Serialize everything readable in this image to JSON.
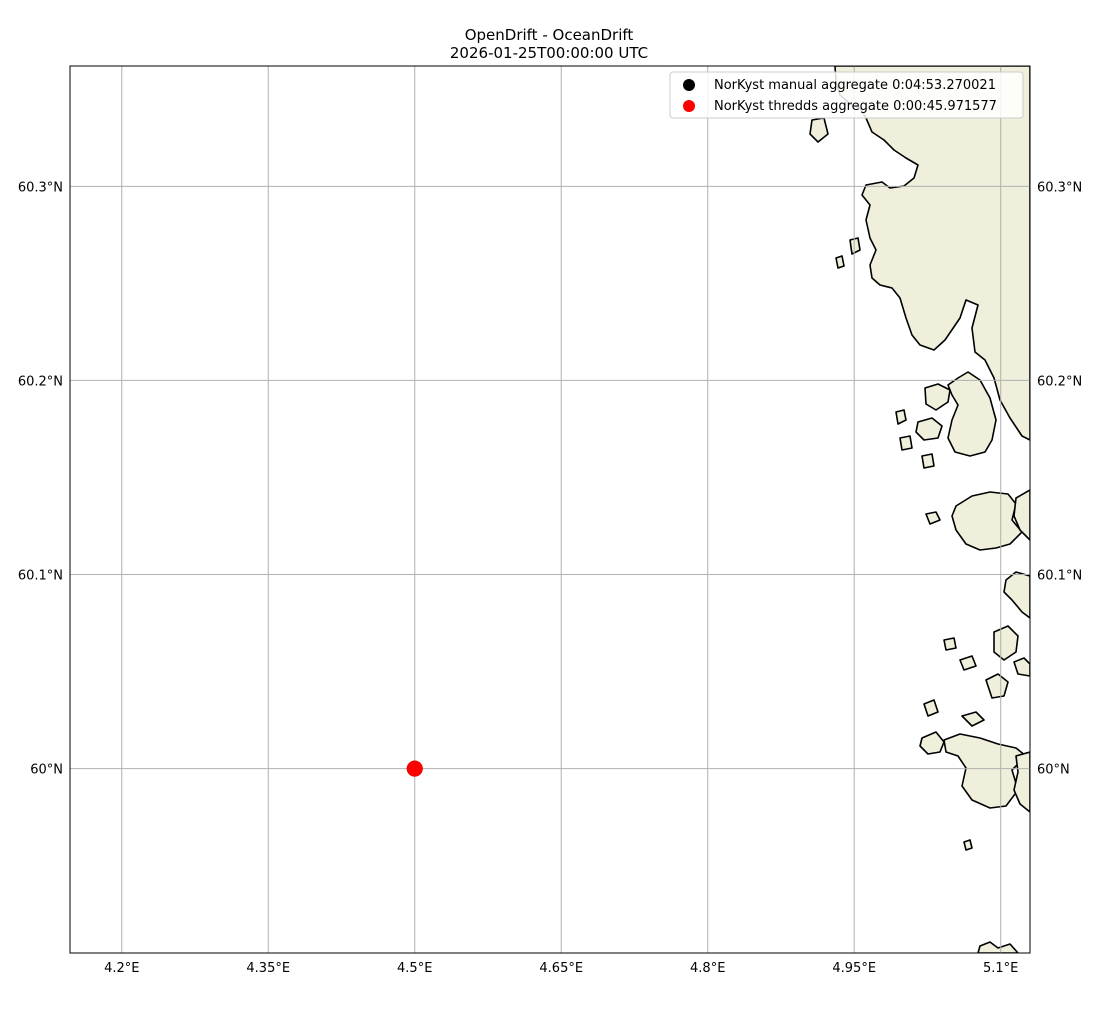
{
  "title": {
    "line1": "OpenDrift - OceanDrift",
    "line2": "2026-01-25T00:00:00 UTC"
  },
  "map": {
    "lon_range": [
      4.147,
      5.13
    ],
    "lat_range": [
      59.905,
      60.362
    ],
    "land_color": "#efefdb",
    "coast_color": "#000000",
    "grid_color": "#b0b0b0",
    "gridlines": true,
    "lon_ticks": [
      {
        "value": 4.2,
        "label": "4.2°E"
      },
      {
        "value": 4.35,
        "label": "4.35°E"
      },
      {
        "value": 4.5,
        "label": "4.5°E"
      },
      {
        "value": 4.65,
        "label": "4.65°E"
      },
      {
        "value": 4.8,
        "label": "4.8°E"
      },
      {
        "value": 4.95,
        "label": "4.95°E"
      },
      {
        "value": 5.1,
        "label": "5.1°E"
      }
    ],
    "lat_ticks": [
      {
        "value": 60.0,
        "label": "60°N"
      },
      {
        "value": 60.1,
        "label": "60.1°N"
      },
      {
        "value": 60.2,
        "label": "60.2°N"
      },
      {
        "value": 60.3,
        "label": "60.3°N"
      }
    ]
  },
  "legend": {
    "placement": "top-right",
    "items": [
      {
        "label": "NorKyst manual aggregate 0:04:53.270021",
        "color": "#000000"
      },
      {
        "label": "NorKyst thredds aggregate 0:00:45.971577",
        "color": "#ff0000"
      }
    ]
  },
  "particles": [
    {
      "series": 0,
      "lon": 4.5,
      "lat": 60.0,
      "color": "#000000"
    },
    {
      "series": 1,
      "lon": 4.5,
      "lat": 60.0,
      "color": "#ff0000"
    }
  ]
}
